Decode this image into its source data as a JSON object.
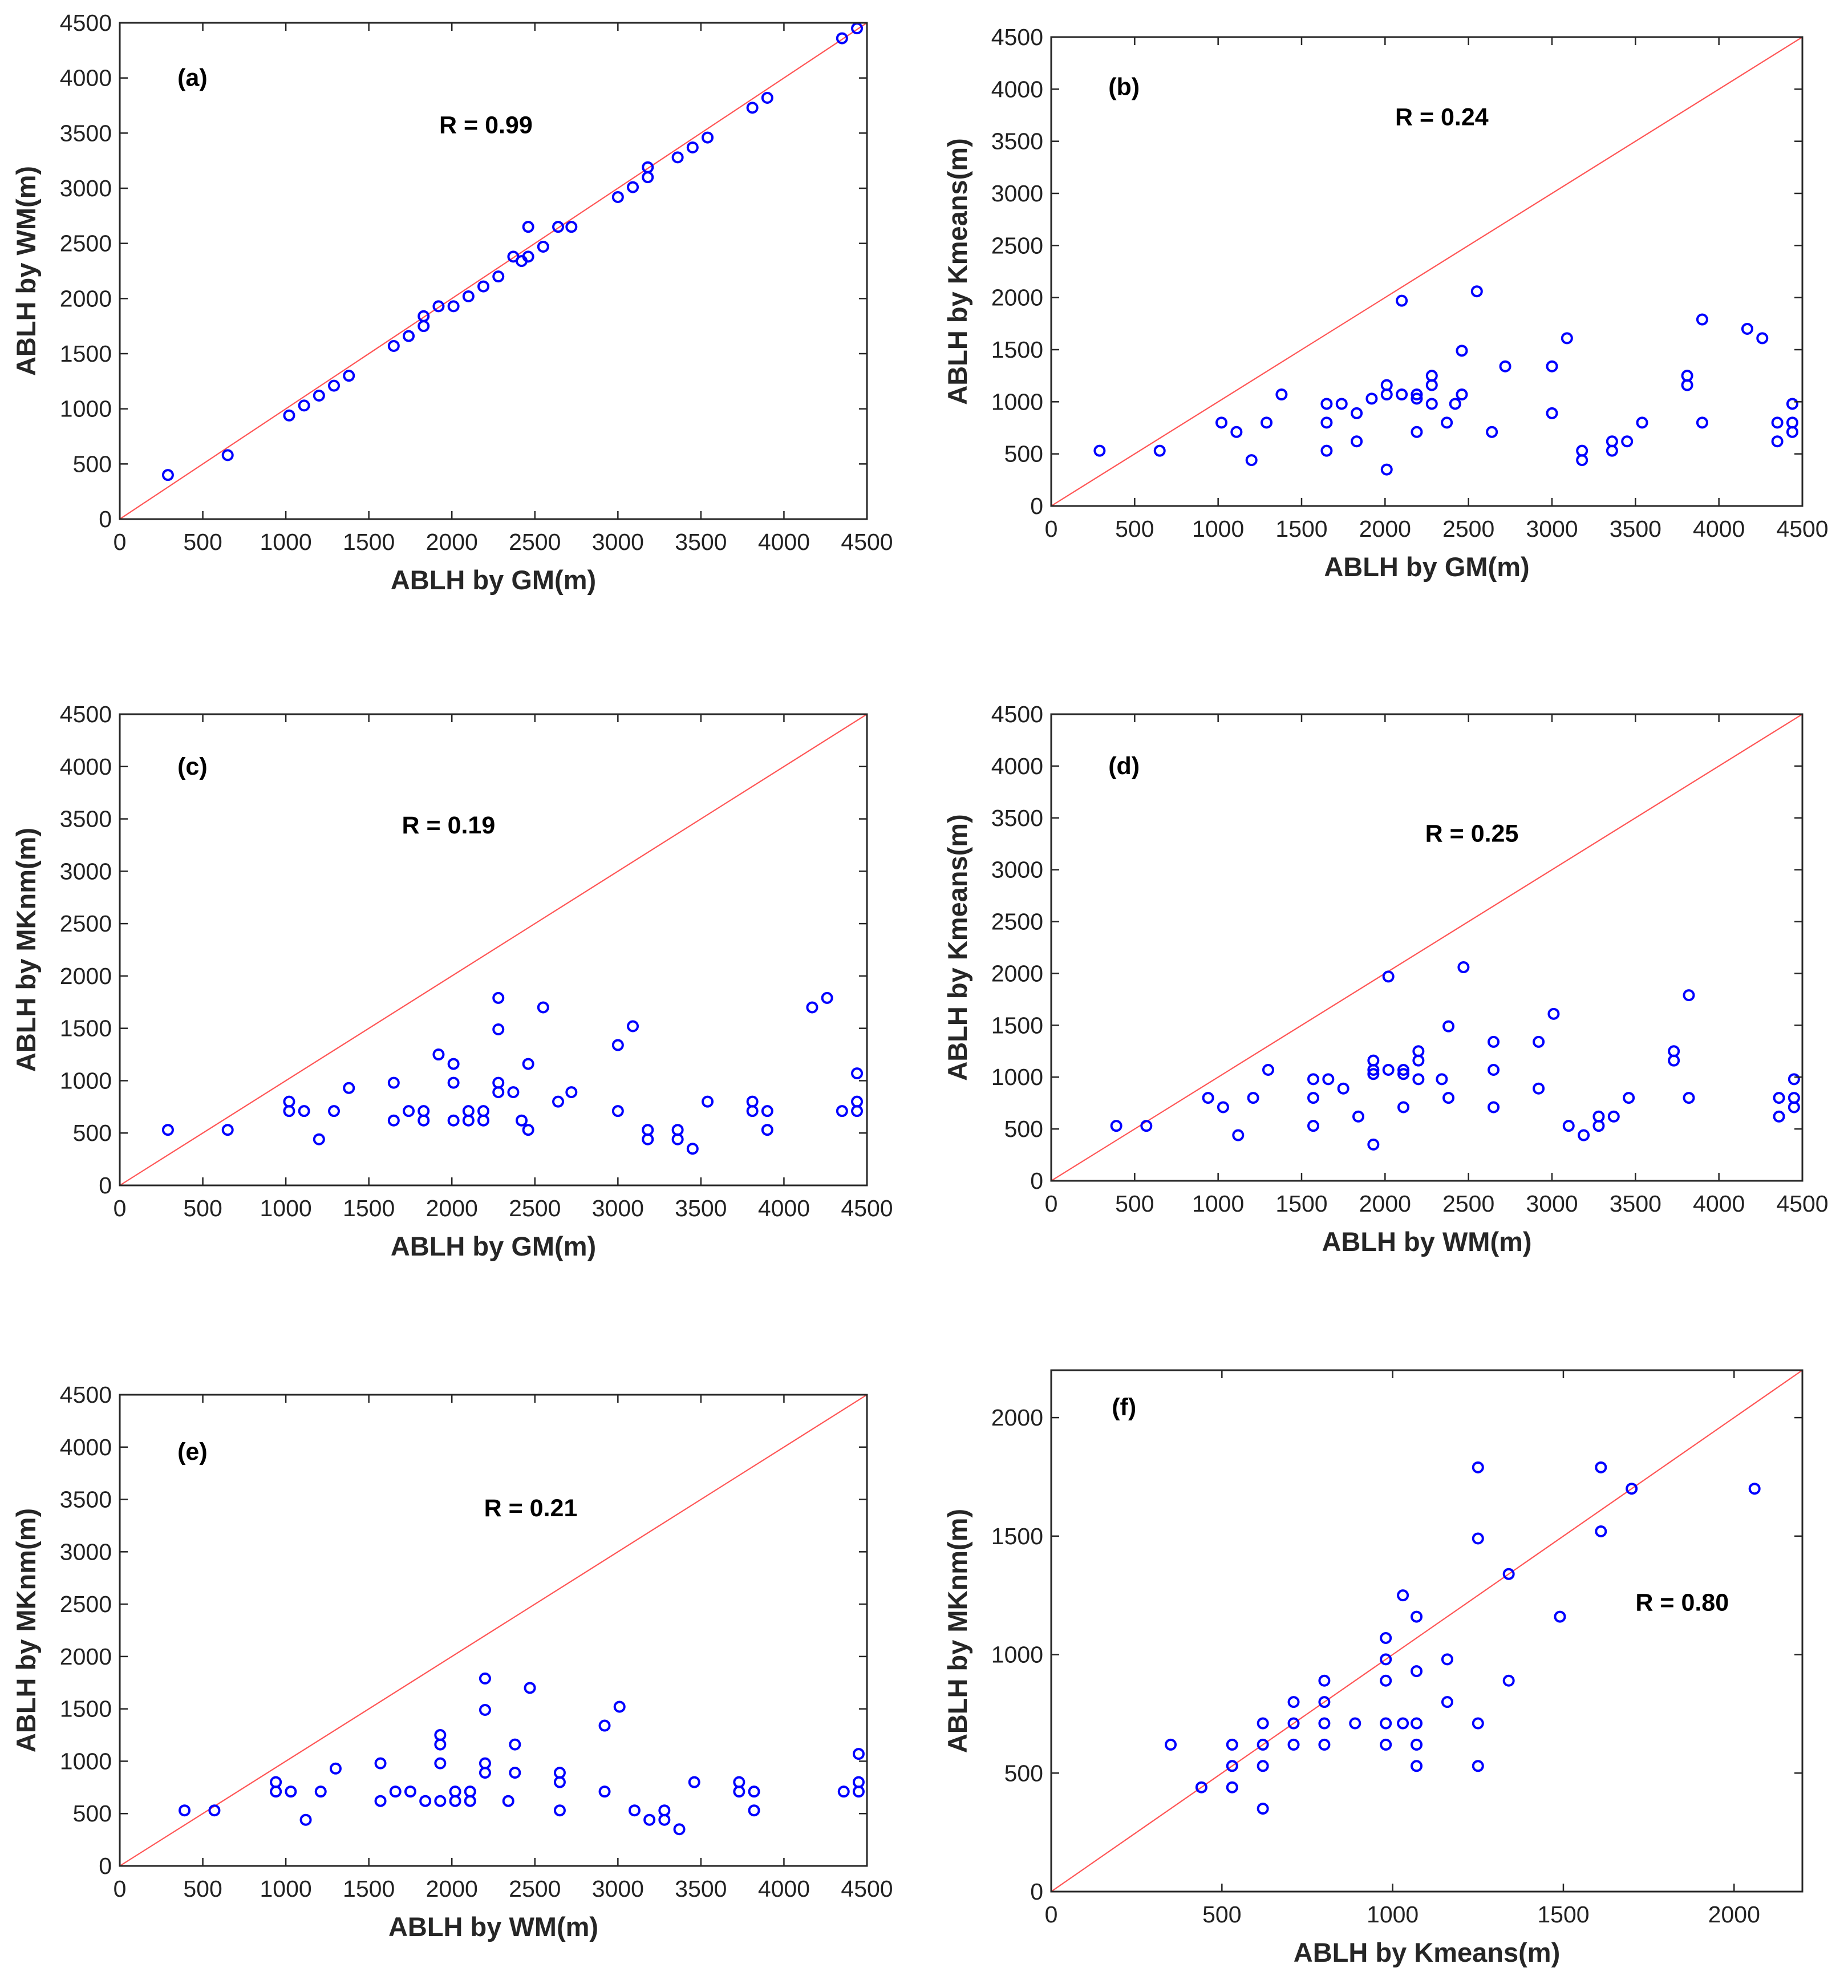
{
  "figure": {
    "panel_count": 6,
    "marker_color": "#0000ff",
    "reference_line_color": "#ff5555"
  },
  "chart_data": [
    {
      "id": "a",
      "type": "scatter",
      "panel_label": "(a)",
      "annotation": "R = 0.99",
      "xlabel": "ABLH by GM(m)",
      "ylabel": "ABLH by WM(m)",
      "xlim": [
        0,
        4500
      ],
      "ylim": [
        0,
        4500
      ],
      "xticks": [
        0,
        500,
        1000,
        1500,
        2000,
        2500,
        3000,
        3500,
        4000,
        4500
      ],
      "yticks": [
        0,
        500,
        1000,
        1500,
        2000,
        2500,
        3000,
        3500,
        4000,
        4500
      ],
      "reference_line": [
        [
          0,
          0
        ],
        [
          4500,
          4500
        ]
      ],
      "points": [
        [
          290,
          400
        ],
        [
          650,
          580
        ],
        [
          1020,
          940
        ],
        [
          1110,
          1030
        ],
        [
          1200,
          1120
        ],
        [
          1290,
          1210
        ],
        [
          1380,
          1300
        ],
        [
          1650,
          1570
        ],
        [
          1740,
          1660
        ],
        [
          1830,
          1750
        ],
        [
          1830,
          1840
        ],
        [
          1920,
          1930
        ],
        [
          2010,
          1930
        ],
        [
          2100,
          2020
        ],
        [
          2190,
          2110
        ],
        [
          2280,
          2200
        ],
        [
          2370,
          2380
        ],
        [
          2420,
          2340
        ],
        [
          2460,
          2650
        ],
        [
          2460,
          2380
        ],
        [
          2550,
          2470
        ],
        [
          2640,
          2650
        ],
        [
          2720,
          2650
        ],
        [
          3000,
          2920
        ],
        [
          3090,
          3010
        ],
        [
          3180,
          3100
        ],
        [
          3180,
          3190
        ],
        [
          3360,
          3280
        ],
        [
          3450,
          3370
        ],
        [
          3540,
          3460
        ],
        [
          3810,
          3730
        ],
        [
          3900,
          3820
        ],
        [
          4350,
          4360
        ],
        [
          4440,
          4450
        ]
      ]
    },
    {
      "id": "b",
      "type": "scatter",
      "panel_label": "(b)",
      "annotation": "R = 0.24",
      "xlabel": "ABLH by GM(m)",
      "ylabel": "ABLH by Kmeans(m)",
      "xlim": [
        0,
        4500
      ],
      "ylim": [
        0,
        4500
      ],
      "xticks": [
        0,
        500,
        1000,
        1500,
        2000,
        2500,
        3000,
        3500,
        4000,
        4500
      ],
      "yticks": [
        0,
        500,
        1000,
        1500,
        2000,
        2500,
        3000,
        3500,
        4000,
        4500
      ],
      "reference_line": [
        [
          0,
          0
        ],
        [
          4500,
          4500
        ]
      ],
      "points": [
        [
          290,
          530
        ],
        [
          650,
          530
        ],
        [
          1020,
          800
        ],
        [
          1110,
          710
        ],
        [
          1200,
          440
        ],
        [
          1290,
          800
        ],
        [
          1380,
          1070
        ],
        [
          1650,
          980
        ],
        [
          1650,
          800
        ],
        [
          1650,
          530
        ],
        [
          1740,
          980
        ],
        [
          1830,
          890
        ],
        [
          1830,
          620
        ],
        [
          1920,
          1030
        ],
        [
          2010,
          1160
        ],
        [
          2010,
          1070
        ],
        [
          2010,
          350
        ],
        [
          2100,
          1970
        ],
        [
          2100,
          1070
        ],
        [
          2190,
          1070
        ],
        [
          2190,
          1030
        ],
        [
          2190,
          710
        ],
        [
          2280,
          1250
        ],
        [
          2280,
          1160
        ],
        [
          2280,
          980
        ],
        [
          2370,
          800
        ],
        [
          2420,
          980
        ],
        [
          2460,
          1490
        ],
        [
          2460,
          1070
        ],
        [
          2550,
          2060
        ],
        [
          2640,
          710
        ],
        [
          2720,
          1340
        ],
        [
          3000,
          1340
        ],
        [
          3000,
          890
        ],
        [
          3090,
          1610
        ],
        [
          3180,
          530
        ],
        [
          3180,
          440
        ],
        [
          3360,
          620
        ],
        [
          3360,
          530
        ],
        [
          3450,
          620
        ],
        [
          3540,
          800
        ],
        [
          3810,
          1250
        ],
        [
          3810,
          1160
        ],
        [
          3900,
          1790
        ],
        [
          3900,
          800
        ],
        [
          4170,
          1700
        ],
        [
          4260,
          1610
        ],
        [
          4350,
          800
        ],
        [
          4350,
          620
        ],
        [
          4440,
          980
        ],
        [
          4440,
          800
        ],
        [
          4440,
          710
        ]
      ]
    },
    {
      "id": "c",
      "type": "scatter",
      "panel_label": "(c)",
      "annotation": "R = 0.19",
      "xlabel": "ABLH by GM(m)",
      "ylabel": "ABLH by MKnm(m)",
      "xlim": [
        0,
        4500
      ],
      "ylim": [
        0,
        4500
      ],
      "xticks": [
        0,
        500,
        1000,
        1500,
        2000,
        2500,
        3000,
        3500,
        4000,
        4500
      ],
      "yticks": [
        0,
        500,
        1000,
        1500,
        2000,
        2500,
        3000,
        3500,
        4000,
        4500
      ],
      "reference_line": [
        [
          0,
          0
        ],
        [
          4500,
          4500
        ]
      ],
      "points": [
        [
          290,
          530
        ],
        [
          650,
          530
        ],
        [
          1020,
          800
        ],
        [
          1020,
          710
        ],
        [
          1110,
          710
        ],
        [
          1200,
          440
        ],
        [
          1290,
          710
        ],
        [
          1380,
          930
        ],
        [
          1650,
          980
        ],
        [
          1650,
          620
        ],
        [
          1740,
          710
        ],
        [
          1830,
          710
        ],
        [
          1830,
          620
        ],
        [
          1920,
          1250
        ],
        [
          2010,
          1160
        ],
        [
          2010,
          980
        ],
        [
          2010,
          620
        ],
        [
          2100,
          710
        ],
        [
          2100,
          620
        ],
        [
          2190,
          710
        ],
        [
          2190,
          620
        ],
        [
          2280,
          1790
        ],
        [
          2280,
          1490
        ],
        [
          2280,
          980
        ],
        [
          2280,
          890
        ],
        [
          2370,
          890
        ],
        [
          2420,
          620
        ],
        [
          2460,
          1160
        ],
        [
          2460,
          530
        ],
        [
          2550,
          1700
        ],
        [
          2640,
          800
        ],
        [
          2720,
          890
        ],
        [
          3000,
          1340
        ],
        [
          3000,
          710
        ],
        [
          3090,
          1520
        ],
        [
          3180,
          530
        ],
        [
          3180,
          440
        ],
        [
          3360,
          530
        ],
        [
          3360,
          440
        ],
        [
          3450,
          350
        ],
        [
          3540,
          800
        ],
        [
          3810,
          800
        ],
        [
          3810,
          710
        ],
        [
          3900,
          710
        ],
        [
          3900,
          530
        ],
        [
          4170,
          1700
        ],
        [
          4260,
          1790
        ],
        [
          4350,
          710
        ],
        [
          4440,
          1070
        ],
        [
          4440,
          800
        ],
        [
          4440,
          710
        ]
      ]
    },
    {
      "id": "d",
      "type": "scatter",
      "panel_label": "(d)",
      "annotation": "R = 0.25",
      "xlabel": "ABLH by WM(m)",
      "ylabel": "ABLH by Kmeans(m)",
      "xlim": [
        0,
        4500
      ],
      "ylim": [
        0,
        4500
      ],
      "xticks": [
        0,
        500,
        1000,
        1500,
        2000,
        2500,
        3000,
        3500,
        4000,
        4500
      ],
      "yticks": [
        0,
        500,
        1000,
        1500,
        2000,
        2500,
        3000,
        3500,
        4000,
        4500
      ],
      "reference_line": [
        [
          0,
          0
        ],
        [
          4500,
          4500
        ]
      ],
      "points": [
        [
          390,
          530
        ],
        [
          570,
          530
        ],
        [
          940,
          800
        ],
        [
          1030,
          710
        ],
        [
          1120,
          440
        ],
        [
          1210,
          800
        ],
        [
          1300,
          1070
        ],
        [
          1570,
          980
        ],
        [
          1570,
          800
        ],
        [
          1570,
          530
        ],
        [
          1660,
          980
        ],
        [
          1750,
          890
        ],
        [
          1840,
          620
        ],
        [
          1930,
          1160
        ],
        [
          1930,
          1070
        ],
        [
          1930,
          1030
        ],
        [
          1930,
          350
        ],
        [
          2020,
          1970
        ],
        [
          2020,
          1070
        ],
        [
          2110,
          1070
        ],
        [
          2110,
          1030
        ],
        [
          2110,
          710
        ],
        [
          2200,
          1250
        ],
        [
          2200,
          1160
        ],
        [
          2200,
          980
        ],
        [
          2340,
          980
        ],
        [
          2380,
          1490
        ],
        [
          2380,
          800
        ],
        [
          2470,
          2060
        ],
        [
          2650,
          1340
        ],
        [
          2650,
          1070
        ],
        [
          2650,
          710
        ],
        [
          2920,
          1340
        ],
        [
          2920,
          890
        ],
        [
          3010,
          1610
        ],
        [
          3100,
          530
        ],
        [
          3190,
          440
        ],
        [
          3280,
          620
        ],
        [
          3280,
          530
        ],
        [
          3370,
          620
        ],
        [
          3460,
          800
        ],
        [
          3730,
          1250
        ],
        [
          3730,
          1160
        ],
        [
          3820,
          1790
        ],
        [
          3820,
          800
        ],
        [
          4360,
          800
        ],
        [
          4360,
          620
        ],
        [
          4450,
          980
        ],
        [
          4450,
          800
        ],
        [
          4450,
          710
        ]
      ]
    },
    {
      "id": "e",
      "type": "scatter",
      "panel_label": "(e)",
      "annotation": "R = 0.21",
      "xlabel": "ABLH by WM(m)",
      "ylabel": "ABLH by MKnm(m)",
      "xlim": [
        0,
        4500
      ],
      "ylim": [
        0,
        4500
      ],
      "xticks": [
        0,
        500,
        1000,
        1500,
        2000,
        2500,
        3000,
        3500,
        4000,
        4500
      ],
      "yticks": [
        0,
        500,
        1000,
        1500,
        2000,
        2500,
        3000,
        3500,
        4000,
        4500
      ],
      "reference_line": [
        [
          0,
          0
        ],
        [
          4500,
          4500
        ]
      ],
      "points": [
        [
          390,
          530
        ],
        [
          570,
          530
        ],
        [
          940,
          800
        ],
        [
          940,
          710
        ],
        [
          1030,
          710
        ],
        [
          1120,
          440
        ],
        [
          1210,
          710
        ],
        [
          1300,
          930
        ],
        [
          1570,
          980
        ],
        [
          1570,
          620
        ],
        [
          1660,
          710
        ],
        [
          1750,
          710
        ],
        [
          1840,
          620
        ],
        [
          1930,
          1250
        ],
        [
          1930,
          1160
        ],
        [
          1930,
          980
        ],
        [
          1930,
          620
        ],
        [
          2020,
          710
        ],
        [
          2020,
          620
        ],
        [
          2110,
          710
        ],
        [
          2110,
          620
        ],
        [
          2200,
          1790
        ],
        [
          2200,
          1490
        ],
        [
          2200,
          980
        ],
        [
          2200,
          890
        ],
        [
          2340,
          620
        ],
        [
          2380,
          1160
        ],
        [
          2380,
          890
        ],
        [
          2470,
          1700
        ],
        [
          2650,
          890
        ],
        [
          2650,
          800
        ],
        [
          2650,
          530
        ],
        [
          2920,
          1340
        ],
        [
          2920,
          710
        ],
        [
          3010,
          1520
        ],
        [
          3100,
          530
        ],
        [
          3190,
          440
        ],
        [
          3280,
          530
        ],
        [
          3280,
          440
        ],
        [
          3370,
          350
        ],
        [
          3460,
          800
        ],
        [
          3730,
          800
        ],
        [
          3730,
          710
        ],
        [
          3820,
          710
        ],
        [
          3820,
          530
        ],
        [
          4360,
          710
        ],
        [
          4450,
          1070
        ],
        [
          4450,
          800
        ],
        [
          4450,
          710
        ]
      ]
    },
    {
      "id": "f",
      "type": "scatter",
      "panel_label": "(f)",
      "annotation": "R = 0.80",
      "xlabel": "ABLH by Kmeans(m)",
      "ylabel": "ABLH by MKnm(m)",
      "xlim": [
        0,
        2200
      ],
      "ylim": [
        0,
        2200
      ],
      "xticks": [
        0,
        500,
        1000,
        1500,
        2000
      ],
      "yticks": [
        0,
        500,
        1000,
        1500,
        2000
      ],
      "reference_line": [
        [
          0,
          0
        ],
        [
          2200,
          2200
        ]
      ],
      "points": [
        [
          350,
          620
        ],
        [
          440,
          440
        ],
        [
          530,
          620
        ],
        [
          530,
          530
        ],
        [
          530,
          440
        ],
        [
          620,
          710
        ],
        [
          620,
          620
        ],
        [
          620,
          530
        ],
        [
          620,
          350
        ],
        [
          710,
          800
        ],
        [
          710,
          710
        ],
        [
          710,
          620
        ],
        [
          800,
          890
        ],
        [
          800,
          800
        ],
        [
          800,
          710
        ],
        [
          800,
          620
        ],
        [
          890,
          710
        ],
        [
          980,
          1070
        ],
        [
          980,
          980
        ],
        [
          980,
          890
        ],
        [
          980,
          710
        ],
        [
          980,
          620
        ],
        [
          1030,
          1250
        ],
        [
          1030,
          710
        ],
        [
          1070,
          1160
        ],
        [
          1070,
          930
        ],
        [
          1070,
          710
        ],
        [
          1070,
          620
        ],
        [
          1070,
          530
        ],
        [
          1160,
          980
        ],
        [
          1160,
          800
        ],
        [
          1250,
          1790
        ],
        [
          1250,
          1490
        ],
        [
          1250,
          710
        ],
        [
          1250,
          530
        ],
        [
          1340,
          1340
        ],
        [
          1340,
          890
        ],
        [
          1490,
          1160
        ],
        [
          1610,
          1790
        ],
        [
          1610,
          1520
        ],
        [
          1700,
          1700
        ],
        [
          2060,
          1700
        ]
      ]
    }
  ]
}
